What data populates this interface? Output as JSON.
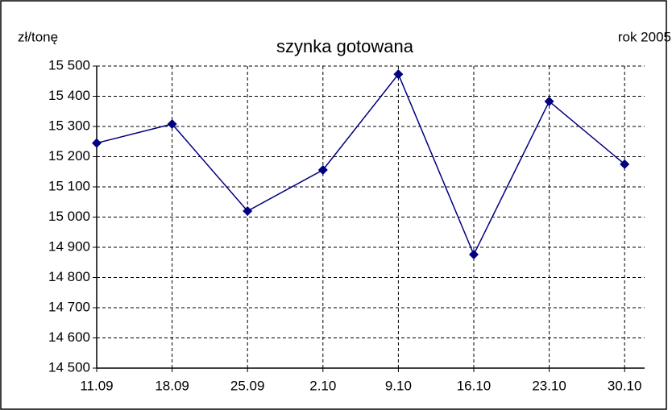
{
  "chart_data": {
    "type": "line",
    "title": "szynka gotowana",
    "y_label": "zł/tonę",
    "annotation": "rok 2005",
    "categories": [
      "11.09",
      "18.09",
      "25.09",
      "2.10",
      "9.10",
      "16.10",
      "23.10",
      "30.10"
    ],
    "series": [
      {
        "name": "szynka gotowana",
        "color": "#000080",
        "values": [
          15245,
          15308,
          15020,
          15156,
          15473,
          14876,
          15383,
          15175
        ]
      }
    ],
    "ylim": [
      14500,
      15500
    ],
    "yticks": [
      {
        "value": 14500,
        "label": "14 500"
      },
      {
        "value": 14600,
        "label": "14 600"
      },
      {
        "value": 14700,
        "label": "14 700"
      },
      {
        "value": 14800,
        "label": "14 800"
      },
      {
        "value": 14900,
        "label": "14 900"
      },
      {
        "value": 15000,
        "label": "15 000"
      },
      {
        "value": 15100,
        "label": "15 100"
      },
      {
        "value": 15200,
        "label": "15 200"
      },
      {
        "value": 15300,
        "label": "15 300"
      },
      {
        "value": 15400,
        "label": "15 400"
      },
      {
        "value": 15500,
        "label": "15 500"
      }
    ],
    "grid": true
  }
}
